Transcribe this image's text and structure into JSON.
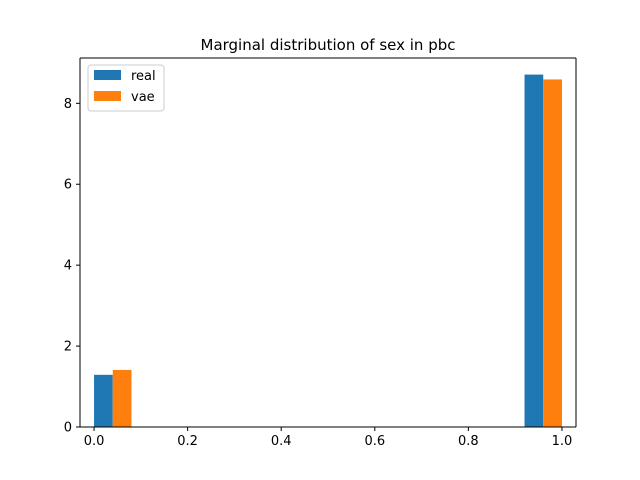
{
  "chart_data": {
    "type": "bar",
    "title": "Marginal distribution of sex in pbc",
    "xlabel": "",
    "ylabel": "",
    "xlim": [
      -0.03,
      1.03
    ],
    "ylim": [
      0,
      9.12
    ],
    "xticks": [
      0.0,
      0.2,
      0.4,
      0.6,
      0.8,
      1.0
    ],
    "xtick_labels": [
      "0.0",
      "0.2",
      "0.4",
      "0.6",
      "0.8",
      "1.0"
    ],
    "yticks": [
      0,
      2,
      4,
      6,
      8
    ],
    "ytick_labels": [
      "0",
      "2",
      "4",
      "6",
      "8"
    ],
    "bar_width": 0.04,
    "grid": false,
    "legend_position": "top-left",
    "series": [
      {
        "name": "real",
        "color": "#1f77b4",
        "bars": [
          {
            "x": 0.02,
            "value": 1.29
          },
          {
            "x": 0.94,
            "value": 8.71
          }
        ]
      },
      {
        "name": "vae",
        "color": "#ff7f0e",
        "bars": [
          {
            "x": 0.06,
            "value": 1.41
          },
          {
            "x": 0.98,
            "value": 8.59
          }
        ]
      }
    ]
  }
}
